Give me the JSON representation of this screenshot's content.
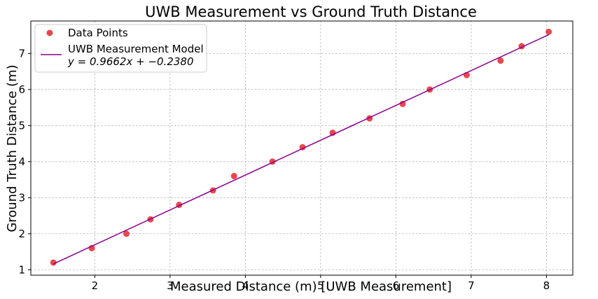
{
  "chart_data": {
    "type": "scatter",
    "title": "UWB Measurement vs Ground Truth Distance",
    "xlabel": "Measured Distance (m) [UWB Measurement]",
    "ylabel": "Ground Truth Distance (m)",
    "xlim": [
      1.15,
      8.35
    ],
    "ylim": [
      0.85,
      7.9
    ],
    "xticks": [
      2,
      3,
      4,
      5,
      6,
      7,
      8
    ],
    "yticks": [
      1,
      2,
      3,
      4,
      5,
      6,
      7
    ],
    "grid": true,
    "legend_position": "top-left",
    "series": [
      {
        "name": "Data Points",
        "kind": "scatter",
        "color": "#e8474c",
        "x": [
          1.45,
          1.96,
          2.42,
          2.74,
          3.12,
          3.57,
          3.85,
          4.36,
          4.76,
          5.16,
          5.65,
          6.09,
          6.45,
          6.94,
          7.39,
          7.67,
          8.03
        ],
        "y": [
          1.2,
          1.6,
          2.0,
          2.4,
          2.8,
          3.2,
          3.6,
          4.0,
          4.4,
          4.8,
          5.2,
          5.6,
          6.0,
          6.4,
          6.8,
          7.2,
          7.6
        ]
      },
      {
        "name": "UWB Measurement Model",
        "name_line2": "y = 0.9662x + −0.2380",
        "kind": "line",
        "color": "#8b008b",
        "slope": 0.9662,
        "intercept": -0.238,
        "x_range": [
          1.45,
          8.03
        ]
      }
    ]
  }
}
